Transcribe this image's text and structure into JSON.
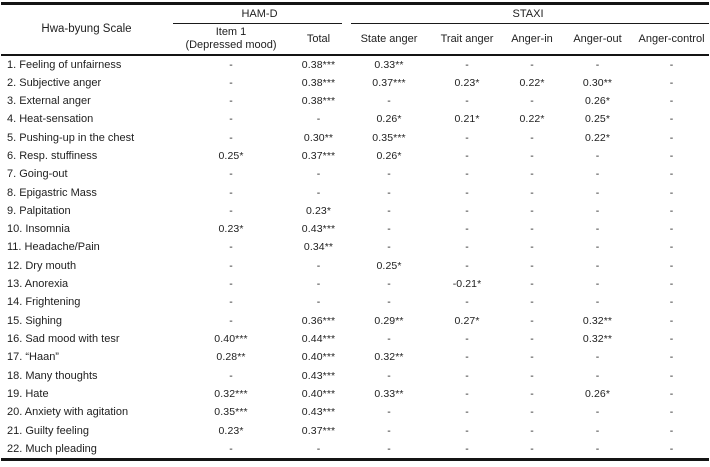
{
  "table": {
    "row_header_label": "Hwa-byung Scale",
    "groups": [
      {
        "label": "HAM-D"
      },
      {
        "label": "STAXI"
      }
    ],
    "columns": [
      {
        "label": "Item 1",
        "sublabel": "(Depressed mood)"
      },
      {
        "label": "Total",
        "sublabel": ""
      },
      {
        "label": "State anger",
        "sublabel": ""
      },
      {
        "label": "Trait anger",
        "sublabel": ""
      },
      {
        "label": "Anger-in",
        "sublabel": ""
      },
      {
        "label": "Anger-out",
        "sublabel": ""
      },
      {
        "label": "Anger-control",
        "sublabel": ""
      }
    ],
    "rows": [
      {
        "label": "1. Feeling of unfairness",
        "values": [
          "-",
          "0.38***",
          "0.33**",
          "-",
          "-",
          "-",
          "-"
        ]
      },
      {
        "label": "2. Subjective anger",
        "values": [
          "-",
          "0.38***",
          "0.37***",
          "0.23*",
          "0.22*",
          "0.30**",
          "-"
        ]
      },
      {
        "label": "3. External anger",
        "values": [
          "-",
          "0.38***",
          "-",
          "-",
          "-",
          "0.26*",
          "-"
        ]
      },
      {
        "label": "4. Heat-sensation",
        "values": [
          "-",
          "-",
          "0.26*",
          "0.21*",
          "0.22*",
          "0.25*",
          "-"
        ]
      },
      {
        "label": "5. Pushing-up in the chest",
        "values": [
          "-",
          "0.30**",
          "0.35***",
          "-",
          "-",
          "0.22*",
          "-"
        ]
      },
      {
        "label": "6. Resp. stuffiness",
        "values": [
          "0.25*",
          "0.37***",
          "0.26*",
          "-",
          "-",
          "-",
          "-"
        ]
      },
      {
        "label": "7. Going-out",
        "values": [
          "-",
          "-",
          "-",
          "-",
          "-",
          "-",
          "-"
        ]
      },
      {
        "label": "8. Epigastric Mass",
        "values": [
          "-",
          "-",
          "-",
          "-",
          "-",
          "-",
          "-"
        ]
      },
      {
        "label": "9. Palpitation",
        "values": [
          "-",
          "0.23*",
          "-",
          "-",
          "-",
          "-",
          "-"
        ]
      },
      {
        "label": "10. Insomnia",
        "values": [
          "0.23*",
          "0.43***",
          "-",
          "-",
          "-",
          "-",
          "-"
        ]
      },
      {
        "label": "11. Headache/Pain",
        "values": [
          "-",
          "0.34**",
          "-",
          "-",
          "-",
          "-",
          "-"
        ]
      },
      {
        "label": "12. Dry mouth",
        "values": [
          "-",
          "-",
          "0.25*",
          "-",
          "-",
          "-",
          "-"
        ]
      },
      {
        "label": "13. Anorexia",
        "values": [
          "-",
          "-",
          "-",
          "-0.21*",
          "-",
          "-",
          "-"
        ]
      },
      {
        "label": "14. Frightening",
        "values": [
          "-",
          "-",
          "-",
          "-",
          "-",
          "-",
          "-"
        ]
      },
      {
        "label": "15. Sighing",
        "values": [
          "-",
          "0.36***",
          "0.29**",
          "0.27*",
          "-",
          "0.32**",
          "-"
        ]
      },
      {
        "label": "16. Sad mood with tesr",
        "values": [
          "0.40***",
          "0.44***",
          "-",
          "-",
          "-",
          "0.32**",
          "-"
        ]
      },
      {
        "label": "17. “Haan”",
        "values": [
          "0.28**",
          "0.40***",
          "0.32**",
          "-",
          "-",
          "-",
          "-"
        ]
      },
      {
        "label": "18. Many thoughts",
        "values": [
          "-",
          "0.43***",
          "-",
          "-",
          "-",
          "-",
          "-"
        ]
      },
      {
        "label": "19. Hate",
        "values": [
          "0.32***",
          "0.40***",
          "0.33**",
          "-",
          "-",
          "0.26*",
          "-"
        ]
      },
      {
        "label": "20. Anxiety with agitation",
        "values": [
          "0.35***",
          "0.43***",
          "-",
          "-",
          "-",
          "-",
          "-"
        ]
      },
      {
        "label": "21. Guilty feeling",
        "values": [
          "0.23*",
          "0.37***",
          "-",
          "-",
          "-",
          "-",
          "-"
        ]
      },
      {
        "label": "22. Much pleading",
        "values": [
          "-",
          "-",
          "-",
          "-",
          "-",
          "-",
          "-"
        ]
      }
    ]
  }
}
